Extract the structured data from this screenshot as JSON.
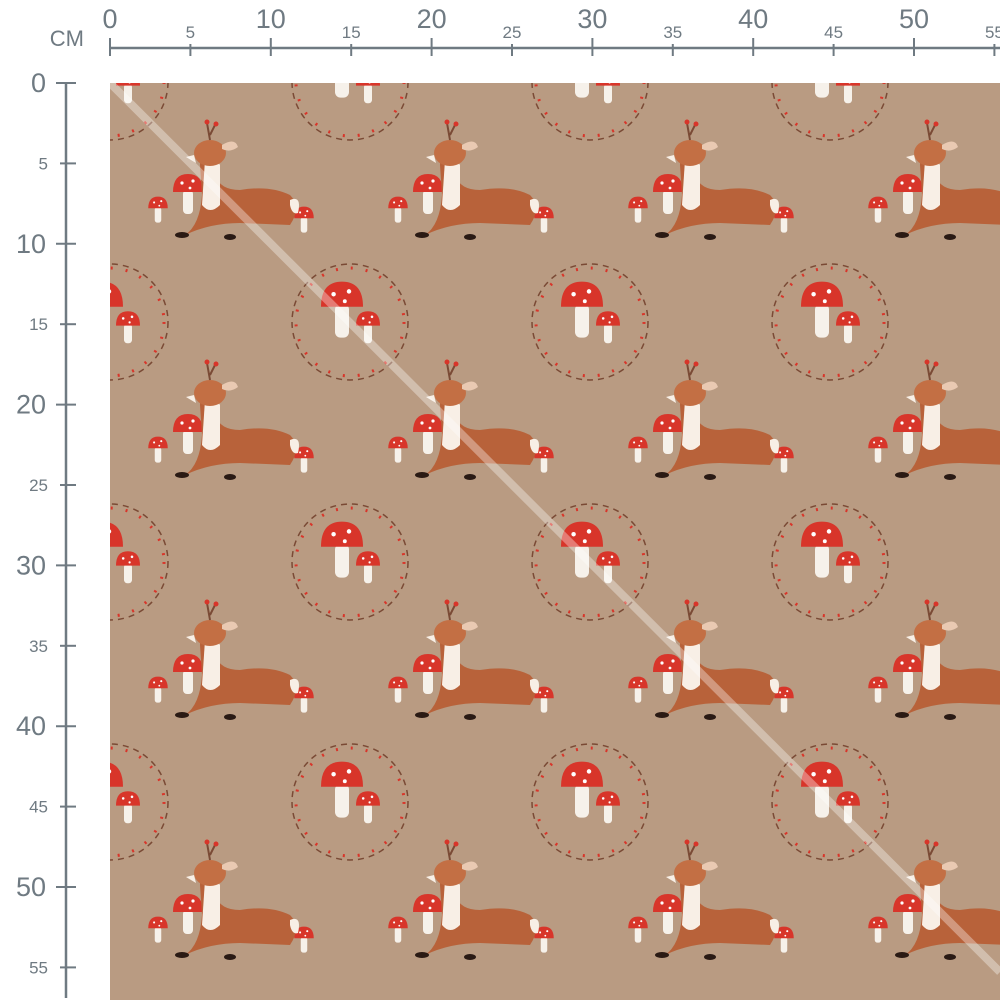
{
  "ruler": {
    "unit": "CM",
    "top_labels": [
      "0",
      "5",
      "10",
      "15",
      "20",
      "25",
      "30",
      "35",
      "40",
      "45",
      "50",
      "55"
    ],
    "left_labels": [
      "0",
      "5",
      "10",
      "15",
      "20",
      "25",
      "30",
      "35",
      "40",
      "45",
      "50",
      "55"
    ],
    "color": "#6f7a82"
  },
  "fabric": {
    "background": "#b99b82",
    "motifs": [
      "deer-with-mushrooms",
      "mushroom-wreath"
    ],
    "accent_red": "#d8352a",
    "deer_brown": "#b8623a"
  }
}
